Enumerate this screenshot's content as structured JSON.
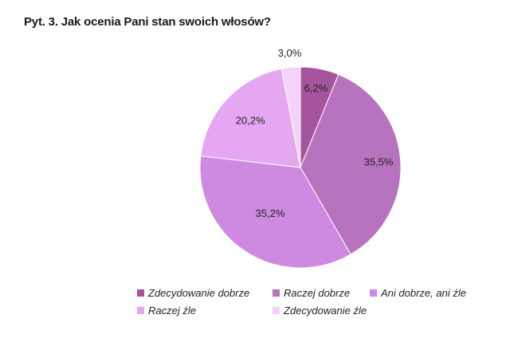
{
  "title": "Pyt. 3. Jak ocenia Pani stan swoich włosów?",
  "chart_data": {
    "type": "pie",
    "title": "Pyt. 3. Jak ocenia Pani stan swoich włosów?",
    "legend_position": "bottom",
    "slices": [
      {
        "label": "Zdecydowanie dobrze",
        "value": 6.2,
        "value_label": "6,2%",
        "color": "#a6549e"
      },
      {
        "label": "Raczej dobrze",
        "value": 35.5,
        "value_label": "35,5%",
        "color": "#b873bf"
      },
      {
        "label": "Ani dobrze, ani źle",
        "value": 35.2,
        "value_label": "35,2%",
        "color": "#cd8ae0"
      },
      {
        "label": "Raczej źle",
        "value": 20.2,
        "value_label": "20,2%",
        "color": "#e5a7f2"
      },
      {
        "label": "Zdecydowanie źle",
        "value": 3.0,
        "value_label": "3,0%",
        "color": "#f4d2fa"
      }
    ]
  }
}
